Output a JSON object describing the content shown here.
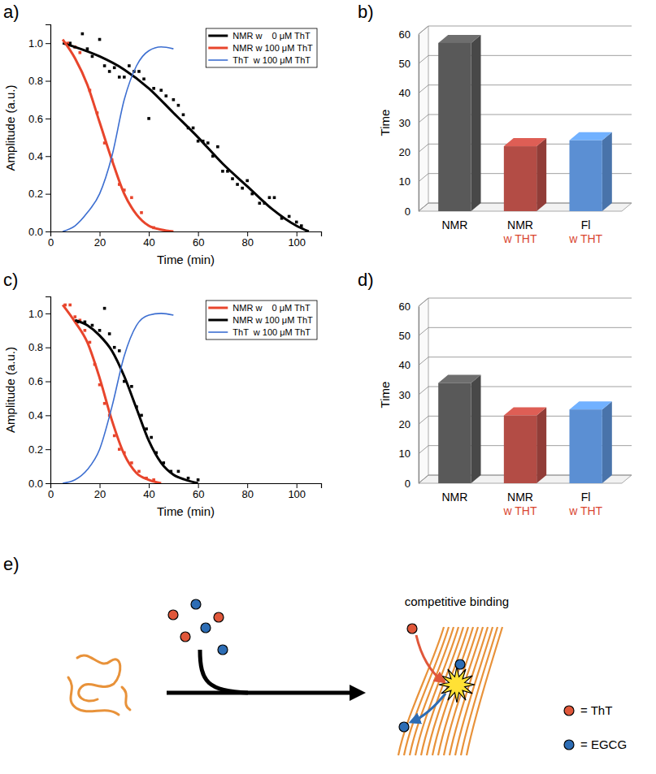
{
  "chart_data": [
    {
      "panel": "a)",
      "type": "line",
      "x_label": "Time (min)",
      "y_label": "Amplitude (a.u.)",
      "xlim": [
        0,
        110
      ],
      "xticks": [
        0,
        20,
        40,
        60,
        80,
        100
      ],
      "ylim": [
        0,
        1.1
      ],
      "yticks": [
        {
          "value": 0,
          "label": "0.0"
        },
        0.2,
        0.4,
        0.6,
        0.8,
        {
          "value": 1,
          "label": "1.0"
        }
      ],
      "legend": "upper right",
      "series": [
        {
          "name": "NMR w    0 μM ThT",
          "color": "#000000",
          "marker": "square",
          "x": [
            5,
            10,
            20,
            30,
            40,
            50,
            60,
            70,
            80,
            90,
            100,
            105
          ],
          "values": [
            1.0,
            0.98,
            0.93,
            0.86,
            0.76,
            0.63,
            0.5,
            0.36,
            0.24,
            0.12,
            0.03,
            0.0
          ],
          "points": {
            "x": [
              8,
              10,
              13,
              15,
              17,
              20,
              22,
              24,
              26,
              28,
              30,
              32,
              34,
              36,
              38,
              40,
              42,
              45,
              47,
              50,
              52,
              54,
              56,
              58,
              60,
              62,
              64,
              66,
              68,
              70,
              72,
              74,
              76,
              78,
              80,
              82,
              85,
              87,
              89,
              91,
              94,
              97,
              100,
              102
            ],
            "y": [
              1.0,
              0.98,
              1.05,
              0.97,
              0.93,
              1.02,
              0.88,
              0.85,
              0.87,
              0.82,
              0.82,
              0.88,
              0.85,
              0.85,
              0.81,
              0.6,
              0.76,
              0.75,
              0.72,
              0.7,
              0.67,
              0.62,
              0.55,
              0.55,
              0.48,
              0.48,
              0.47,
              0.4,
              0.45,
              0.32,
              0.32,
              0.28,
              0.25,
              0.23,
              0.27,
              0.2,
              0.15,
              0.15,
              0.18,
              0.18,
              0.07,
              0.08,
              0.05,
              0.03
            ]
          }
        },
        {
          "name": "NMR w 100 μM ThT",
          "color": "#e8452c",
          "marker": "square",
          "x": [
            5,
            10,
            15,
            20,
            25,
            30,
            35,
            40,
            45,
            50
          ],
          "values": [
            1.02,
            0.92,
            0.78,
            0.58,
            0.38,
            0.2,
            0.09,
            0.03,
            0.01,
            0.0
          ],
          "points": {
            "x": [
              7,
              10,
              12,
              16,
              19,
              22,
              25,
              28,
              30,
              33,
              37,
              42
            ],
            "y": [
              1.0,
              0.98,
              0.95,
              0.75,
              0.63,
              0.47,
              0.38,
              0.25,
              0.22,
              0.18,
              0.1,
              0.02
            ]
          }
        },
        {
          "name": "ThT  w 100 μM ThT",
          "color": "#3d6fd1",
          "marker": "none",
          "x": [
            5,
            10,
            15,
            20,
            25,
            30,
            35,
            40,
            45,
            50
          ],
          "values": [
            0.0,
            0.03,
            0.1,
            0.2,
            0.4,
            0.7,
            0.88,
            0.96,
            0.98,
            0.97
          ]
        }
      ]
    },
    {
      "panel": "b)",
      "type": "bar",
      "y_label": "Time",
      "categories": [
        "NMR",
        "NMR w THT",
        "Fl w THT"
      ],
      "values": [
        57,
        22,
        24
      ],
      "colors": [
        "#595959",
        "#b34c45",
        "#5b8fd3"
      ],
      "ylim": [
        0,
        60
      ],
      "yticks": [
        0,
        10,
        20,
        30,
        40,
        50,
        60
      ],
      "grid": true
    },
    {
      "panel": "c)",
      "type": "line",
      "x_label": "Time (min)",
      "y_label": "Amplitude (a.u.)",
      "xlim": [
        0,
        110
      ],
      "xticks": [
        0,
        20,
        40,
        60,
        80,
        100
      ],
      "ylim": [
        0,
        1.1
      ],
      "yticks": [
        {
          "value": 0,
          "label": "0.0"
        },
        0.2,
        0.4,
        0.6,
        0.8,
        {
          "value": 1,
          "label": "1.0"
        }
      ],
      "legend": "upper right",
      "series": [
        {
          "name": "NMR w    0 μM ThT",
          "color": "#e8452c",
          "marker": "square",
          "x": [
            5,
            10,
            15,
            20,
            25,
            30,
            35,
            40,
            45
          ],
          "values": [
            1.05,
            0.95,
            0.83,
            0.62,
            0.37,
            0.17,
            0.06,
            0.02,
            0.0
          ],
          "points": {
            "x": [
              6,
              8,
              10,
              12,
              14,
              16,
              18,
              20,
              22,
              24,
              26,
              28,
              30,
              33,
              36,
              39,
              42
            ],
            "y": [
              1.05,
              1.05,
              0.98,
              0.96,
              0.9,
              0.83,
              0.7,
              0.58,
              0.47,
              0.4,
              0.28,
              0.2,
              0.18,
              0.12,
              0.07,
              0.03,
              0.02
            ]
          }
        },
        {
          "name": "NMR w 100 μM ThT",
          "color": "#000000",
          "marker": "square",
          "x": [
            10,
            15,
            20,
            25,
            30,
            35,
            40,
            45,
            50,
            55,
            60
          ],
          "values": [
            0.96,
            0.93,
            0.87,
            0.78,
            0.63,
            0.44,
            0.25,
            0.12,
            0.05,
            0.02,
            0.0
          ],
          "points": {
            "x": [
              11,
              14,
              17,
              20,
              22,
              24,
              26,
              28,
              30,
              33,
              35,
              37,
              39,
              41,
              43,
              46,
              49,
              52,
              56,
              60
            ],
            "y": [
              0.95,
              0.95,
              0.93,
              0.9,
              1.03,
              0.88,
              0.8,
              0.78,
              0.6,
              0.57,
              0.45,
              0.4,
              0.32,
              0.27,
              0.18,
              0.12,
              0.07,
              0.07,
              0.03,
              0.02
            ]
          }
        },
        {
          "name": "ThT  w 100 μM ThT",
          "color": "#3d6fd1",
          "marker": "none",
          "x": [
            5,
            10,
            15,
            20,
            25,
            30,
            35,
            40,
            45,
            50
          ],
          "values": [
            0.0,
            0.02,
            0.08,
            0.2,
            0.45,
            0.75,
            0.93,
            0.99,
            1.0,
            0.99
          ]
        }
      ]
    },
    {
      "panel": "d)",
      "type": "bar",
      "y_label": "Time",
      "categories": [
        "NMR",
        "NMR w THT",
        "Fl w THT"
      ],
      "values": [
        34,
        23,
        25
      ],
      "colors": [
        "#595959",
        "#b34c45",
        "#5b8fd3"
      ],
      "ylim": [
        0,
        60
      ],
      "yticks": [
        0,
        10,
        20,
        30,
        40,
        50,
        60
      ],
      "grid": true
    }
  ],
  "diagram": {
    "panel": "e)",
    "title": "competitive binding",
    "key": [
      {
        "label": "= ThT",
        "color": "#e0573a"
      },
      {
        "label": "= EGCG",
        "color": "#2d6db5"
      }
    ]
  }
}
